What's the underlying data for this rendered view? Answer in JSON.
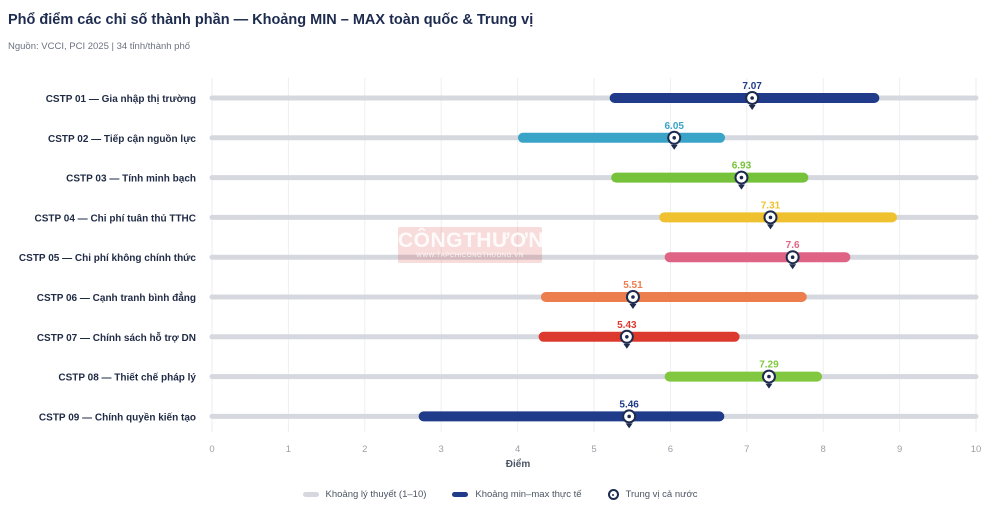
{
  "header": {
    "title": "Phổ điểm các chỉ số thành phần — Khoảng MIN – MAX toàn quốc & Trung vị",
    "subtitle": "Nguồn: VCCI, PCI 2025 | 34 tỉnh/thành phố"
  },
  "watermark": {
    "text": "CÔNGTHƯƠNG",
    "subtext": "WWW.TAPCHICONGTHUONG.VN"
  },
  "legend": {
    "theory_label": "Khoảng lý thuyết (1–10)",
    "actual_label": "Khoảng min–max thực tế",
    "median_label": "Trung vị cả nước"
  },
  "colors": {
    "track": "#d5d8de",
    "actual_legend": "#1f3b8a",
    "median_ring": "#1d2b4f",
    "axis_text": "#9aa0a8",
    "label_text": "#1f2a44"
  },
  "chart_data": {
    "type": "range",
    "title": "Phổ điểm các chỉ số thành phần — Khoảng MIN – MAX toàn quốc & Trung vị",
    "xlabel": "Điểm",
    "xlim": [
      0,
      10
    ],
    "xticks": [
      0,
      1,
      2,
      3,
      4,
      5,
      6,
      7,
      8,
      9,
      10
    ],
    "theory_range": [
      1,
      10
    ],
    "grid": true,
    "legend_position": "bottom-center",
    "rows": [
      {
        "label": "CSTP 01 — Gia nhập thị trường",
        "min": 5.27,
        "max": 8.67,
        "median": 7.07,
        "median_label": "7.07",
        "color": "#1f3b8a"
      },
      {
        "label": "CSTP 02 — Tiếp cận nguồn lực",
        "min": 4.07,
        "max": 6.65,
        "median": 6.05,
        "median_label": "6.05",
        "color": "#3aa3c8"
      },
      {
        "label": "CSTP 03 — Tính minh bạch",
        "min": 5.29,
        "max": 7.74,
        "median": 6.93,
        "median_label": "6.93",
        "color": "#76c23a"
      },
      {
        "label": "CSTP 04 — Chi phí tuân thủ TTHC",
        "min": 5.92,
        "max": 8.9,
        "median": 7.31,
        "median_label": "7.31",
        "color": "#efc12f"
      },
      {
        "label": "CSTP 05 — Chi phí không chính thức",
        "min": 5.99,
        "max": 8.29,
        "median": 7.6,
        "median_label": "7.6",
        "color": "#df6384"
      },
      {
        "label": "CSTP 06 — Cạnh tranh bình đẳng",
        "min": 4.37,
        "max": 7.72,
        "median": 5.51,
        "median_label": "5.51",
        "color": "#ec7d4d"
      },
      {
        "label": "CSTP 07 — Chính sách hỗ trợ DN",
        "min": 4.34,
        "max": 6.84,
        "median": 5.43,
        "median_label": "5.43",
        "color": "#dd3a2f"
      },
      {
        "label": "CSTP 08 — Thiết chế pháp lý",
        "min": 5.99,
        "max": 7.92,
        "median": 7.29,
        "median_label": "7.29",
        "color": "#82c740"
      },
      {
        "label": "CSTP 09 — Chính quyền kiến tạo",
        "min": 2.77,
        "max": 6.64,
        "median": 5.46,
        "median_label": "5.46",
        "color": "#1f3b8a"
      }
    ]
  }
}
